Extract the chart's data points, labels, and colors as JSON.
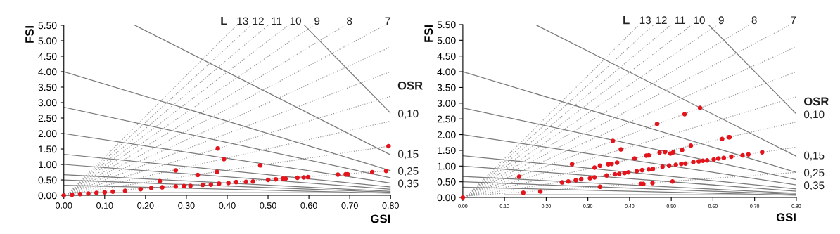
{
  "chart_data": [
    {
      "type": "scatter",
      "xlabel": "GSI",
      "ylabel": "FSI",
      "xlim": [
        0,
        0.8
      ],
      "ylim": [
        0,
        5.5
      ],
      "grid": false,
      "legend": false,
      "xticks": [
        {
          "value": 0,
          "label": "0.00"
        },
        {
          "value": 0.1,
          "label": "0.10"
        },
        {
          "value": 0.2,
          "label": "0.20"
        },
        {
          "value": 0.3,
          "label": "0.30"
        },
        {
          "value": 0.4,
          "label": "0.40"
        },
        {
          "value": 0.5,
          "label": "0.50"
        },
        {
          "value": 0.6,
          "label": "0.60"
        },
        {
          "value": 0.7,
          "label": "0.70"
        },
        {
          "value": 0.8,
          "label": "0.80"
        }
      ],
      "yticks": [
        {
          "value": 0,
          "label": "0.00"
        },
        {
          "value": 0.5,
          "label": "0.50"
        },
        {
          "value": 1,
          "label": "1.00"
        },
        {
          "value": 1.5,
          "label": "1.50"
        },
        {
          "value": 2,
          "label": "2.00"
        },
        {
          "value": 2.5,
          "label": "2.50"
        },
        {
          "value": 3,
          "label": "3.00"
        },
        {
          "value": 3.5,
          "label": "3.50"
        },
        {
          "value": 4,
          "label": "4.00"
        },
        {
          "value": 4.5,
          "label": "4.50"
        },
        {
          "value": 5,
          "label": "5.00"
        },
        {
          "value": 5.5,
          "label": "5.50"
        }
      ],
      "annotations": [
        "L",
        "13",
        "12",
        "11",
        "10",
        "9",
        "8",
        "7",
        "OSR",
        "0,10",
        "0,15",
        "0,25",
        "0,35"
      ],
      "series": [
        {
          "type": "line",
          "line_style": "dotted",
          "color": "#9a9a9a",
          "x": [
            0.01,
            0.423
          ],
          "values": [
            0.05,
            5.5
          ]
        },
        {
          "type": "line",
          "line_style": "dotted",
          "color": "#9a9a9a",
          "x": [
            0.01,
            0.458
          ],
          "values": [
            0.05,
            5.5
          ]
        },
        {
          "type": "line",
          "line_style": "dotted",
          "color": "#9a9a9a",
          "x": [
            0.01,
            0.5
          ],
          "values": [
            0.05,
            5.5
          ]
        },
        {
          "type": "line",
          "line_style": "dotted",
          "color": "#9a9a9a",
          "x": [
            0.01,
            0.55
          ],
          "values": [
            0.05,
            5.5
          ]
        },
        {
          "type": "line",
          "line_style": "dotted",
          "color": "#9a9a9a",
          "x": [
            0.01,
            0.611
          ],
          "values": [
            0.05,
            5.5
          ]
        },
        {
          "type": "line",
          "line_style": "dotted",
          "color": "#9a9a9a",
          "x": [
            0.01,
            0.688
          ],
          "values": [
            0.05,
            5.5
          ]
        },
        {
          "type": "line",
          "line_style": "dotted",
          "color": "#9a9a9a",
          "x": [
            0.01,
            0.786
          ],
          "values": [
            0.05,
            5.5
          ]
        },
        {
          "type": "line",
          "line_style": "dotted",
          "color": "#9a9a9a",
          "x": [
            0.01,
            0.8
          ],
          "values": [
            0.05,
            4.8
          ]
        },
        {
          "type": "line",
          "line_style": "dotted",
          "color": "#9a9a9a",
          "x": [
            0.01,
            0.8
          ],
          "values": [
            0.05,
            4.0
          ]
        },
        {
          "type": "line",
          "line_style": "dotted",
          "color": "#9a9a9a",
          "x": [
            0.01,
            0.8
          ],
          "values": [
            0.05,
            3.2
          ]
        },
        {
          "type": "line",
          "line_style": "dotted",
          "color": "#9a9a9a",
          "x": [
            0.01,
            0.8
          ],
          "values": [
            0.05,
            2.4
          ]
        },
        {
          "type": "line",
          "line_style": "dotted",
          "color": "#9a9a9a",
          "x": [
            0.01,
            0.8
          ],
          "values": [
            0.05,
            1.6
          ]
        },
        {
          "type": "line",
          "line_style": "dotted",
          "color": "#9a9a9a",
          "x": [
            0.01,
            0.8
          ],
          "values": [
            0.05,
            0.8
          ]
        },
        {
          "type": "line",
          "line_style": "solid",
          "color": "#7a7a7a",
          "x": [
            0.589,
            0.8
          ],
          "values": [
            5.5,
            2.66
          ]
        },
        {
          "type": "line",
          "line_style": "solid",
          "color": "#7a7a7a",
          "x": [
            0.174,
            0.8
          ],
          "values": [
            5.5,
            1.31
          ]
        },
        {
          "type": "line",
          "line_style": "solid",
          "color": "#7a7a7a",
          "x": [
            0,
            0.8
          ],
          "values": [
            4.0,
            0.8
          ]
        },
        {
          "type": "line",
          "line_style": "solid",
          "color": "#7a7a7a",
          "x": [
            0,
            0.8
          ],
          "values": [
            2.85,
            0.57
          ]
        },
        {
          "type": "line",
          "line_style": "solid",
          "color": "#7a7a7a",
          "x": [
            0,
            0.8
          ],
          "values": [
            2.0,
            0.4
          ]
        },
        {
          "type": "line",
          "line_style": "solid",
          "color": "#7a7a7a",
          "x": [
            0,
            0.8
          ],
          "values": [
            1.33,
            0.27
          ]
        },
        {
          "type": "line",
          "line_style": "solid",
          "color": "#7a7a7a",
          "x": [
            0,
            0.8
          ],
          "values": [
            1.0,
            0.2
          ]
        },
        {
          "type": "line",
          "line_style": "solid",
          "color": "#7a7a7a",
          "x": [
            0,
            0.8
          ],
          "values": [
            0.67,
            0.13
          ]
        },
        {
          "type": "line",
          "line_style": "solid",
          "color": "#7a7a7a",
          "x": [
            0,
            0.8
          ],
          "values": [
            0.5,
            0.1
          ]
        },
        {
          "type": "line",
          "line_style": "solid",
          "color": "#7a7a7a",
          "x": [
            0,
            0.8
          ],
          "values": [
            0.33,
            0.07
          ]
        },
        {
          "type": "line",
          "line_style": "solid",
          "color": "#9a9a9a",
          "x": [
            0.02,
            0.7
          ],
          "values": [
            0.09,
            0.09
          ]
        },
        {
          "type": "scatter",
          "marker": "circle",
          "color": "#e3141c",
          "x": [
            0,
            0.02,
            0.04,
            0.06,
            0.08,
            0.1,
            0.12,
            0.15,
            0.188,
            0.214,
            0.241,
            0.274,
            0.294,
            0.31,
            0.34,
            0.36,
            0.38,
            0.403,
            0.422,
            0.446,
            0.463,
            0.5,
            0.519,
            0.536,
            0.543,
            0.572,
            0.587,
            0.598,
            0.377,
            0.392,
            0.274,
            0.328,
            0.375,
            0.481,
            0.235,
            0.795,
            0.789,
            0.755,
            0.671,
            0.69,
            0.695
          ],
          "values": [
            0,
            0.02,
            0.04,
            0.06,
            0.08,
            0.1,
            0.12,
            0.15,
            0.2,
            0.24,
            0.26,
            0.29,
            0.3,
            0.31,
            0.34,
            0.35,
            0.38,
            0.4,
            0.43,
            0.44,
            0.45,
            0.5,
            0.52,
            0.54,
            0.54,
            0.57,
            0.58,
            0.59,
            1.52,
            1.17,
            0.81,
            0.66,
            0.76,
            0.97,
            0.46,
            1.59,
            0.79,
            0.75,
            0.67,
            0.68,
            0.68
          ]
        }
      ]
    },
    {
      "type": "scatter",
      "xlabel": "GSI",
      "ylabel": "FSI",
      "xlim": [
        0,
        0.8
      ],
      "ylim": [
        0,
        5.5
      ],
      "grid": false,
      "legend": false,
      "xticks": [
        {
          "value": 0,
          "label": "0.00"
        },
        {
          "value": 0.1,
          "label": "0.10"
        },
        {
          "value": 0.2,
          "label": "0.20"
        },
        {
          "value": 0.3,
          "label": "0.30"
        },
        {
          "value": 0.4,
          "label": "0.40"
        },
        {
          "value": 0.5,
          "label": "0.50"
        },
        {
          "value": 0.6,
          "label": "0.60"
        },
        {
          "value": 0.7,
          "label": "0.70"
        },
        {
          "value": 0.8,
          "label": "0.80"
        }
      ],
      "yticks": [
        {
          "value": 0,
          "label": "0.00"
        },
        {
          "value": 0.5,
          "label": "0.50"
        },
        {
          "value": 1,
          "label": "1.00"
        },
        {
          "value": 1.5,
          "label": "1.50"
        },
        {
          "value": 2,
          "label": "2.00"
        },
        {
          "value": 2.5,
          "label": "2.50"
        },
        {
          "value": 3,
          "label": "3.00"
        },
        {
          "value": 3.5,
          "label": "3.50"
        },
        {
          "value": 4,
          "label": "4.00"
        },
        {
          "value": 4.5,
          "label": "4.50"
        },
        {
          "value": 5,
          "label": "5.00"
        },
        {
          "value": 5.5,
          "label": "5.50"
        }
      ],
      "annotations": [
        "L",
        "13",
        "12",
        "11",
        "10",
        "9",
        "8",
        "7",
        "OSR",
        "0,10",
        "0,15",
        "0,25",
        "0,35"
      ],
      "series": [
        {
          "type": "line",
          "line_style": "dotted",
          "color": "#9a9a9a",
          "x": [
            0.01,
            0.423
          ],
          "values": [
            0.05,
            5.5
          ]
        },
        {
          "type": "line",
          "line_style": "dotted",
          "color": "#9a9a9a",
          "x": [
            0.01,
            0.458
          ],
          "values": [
            0.05,
            5.5
          ]
        },
        {
          "type": "line",
          "line_style": "dotted",
          "color": "#9a9a9a",
          "x": [
            0.01,
            0.5
          ],
          "values": [
            0.05,
            5.5
          ]
        },
        {
          "type": "line",
          "line_style": "dotted",
          "color": "#9a9a9a",
          "x": [
            0.01,
            0.55
          ],
          "values": [
            0.05,
            5.5
          ]
        },
        {
          "type": "line",
          "line_style": "dotted",
          "color": "#9a9a9a",
          "x": [
            0.01,
            0.611
          ],
          "values": [
            0.05,
            5.5
          ]
        },
        {
          "type": "line",
          "line_style": "dotted",
          "color": "#9a9a9a",
          "x": [
            0.01,
            0.688
          ],
          "values": [
            0.05,
            5.5
          ]
        },
        {
          "type": "line",
          "line_style": "dotted",
          "color": "#9a9a9a",
          "x": [
            0.01,
            0.786
          ],
          "values": [
            0.05,
            5.5
          ]
        },
        {
          "type": "line",
          "line_style": "dotted",
          "color": "#9a9a9a",
          "x": [
            0.01,
            0.8
          ],
          "values": [
            0.05,
            4.8
          ]
        },
        {
          "type": "line",
          "line_style": "dotted",
          "color": "#9a9a9a",
          "x": [
            0.01,
            0.8
          ],
          "values": [
            0.05,
            4.0
          ]
        },
        {
          "type": "line",
          "line_style": "dotted",
          "color": "#9a9a9a",
          "x": [
            0.01,
            0.8
          ],
          "values": [
            0.05,
            3.2
          ]
        },
        {
          "type": "line",
          "line_style": "dotted",
          "color": "#9a9a9a",
          "x": [
            0.01,
            0.8
          ],
          "values": [
            0.05,
            2.4
          ]
        },
        {
          "type": "line",
          "line_style": "dotted",
          "color": "#9a9a9a",
          "x": [
            0.01,
            0.8
          ],
          "values": [
            0.05,
            1.6
          ]
        },
        {
          "type": "line",
          "line_style": "dotted",
          "color": "#9a9a9a",
          "x": [
            0.01,
            0.8
          ],
          "values": [
            0.05,
            0.8
          ]
        },
        {
          "type": "line",
          "line_style": "solid",
          "color": "#7a7a7a",
          "x": [
            0.589,
            0.8
          ],
          "values": [
            5.5,
            2.66
          ]
        },
        {
          "type": "line",
          "line_style": "solid",
          "color": "#7a7a7a",
          "x": [
            0.174,
            0.8
          ],
          "values": [
            5.5,
            1.31
          ]
        },
        {
          "type": "line",
          "line_style": "solid",
          "color": "#7a7a7a",
          "x": [
            0,
            0.8
          ],
          "values": [
            4.0,
            0.8
          ]
        },
        {
          "type": "line",
          "line_style": "solid",
          "color": "#7a7a7a",
          "x": [
            0,
            0.8
          ],
          "values": [
            2.85,
            0.57
          ]
        },
        {
          "type": "line",
          "line_style": "solid",
          "color": "#7a7a7a",
          "x": [
            0,
            0.8
          ],
          "values": [
            2.0,
            0.4
          ]
        },
        {
          "type": "line",
          "line_style": "solid",
          "color": "#7a7a7a",
          "x": [
            0,
            0.8
          ],
          "values": [
            1.33,
            0.27
          ]
        },
        {
          "type": "line",
          "line_style": "solid",
          "color": "#7a7a7a",
          "x": [
            0,
            0.8
          ],
          "values": [
            1.0,
            0.2
          ]
        },
        {
          "type": "line",
          "line_style": "solid",
          "color": "#7a7a7a",
          "x": [
            0,
            0.8
          ],
          "values": [
            0.67,
            0.13
          ]
        },
        {
          "type": "line",
          "line_style": "solid",
          "color": "#7a7a7a",
          "x": [
            0,
            0.8
          ],
          "values": [
            0.5,
            0.1
          ]
        },
        {
          "type": "line",
          "line_style": "solid",
          "color": "#7a7a7a",
          "x": [
            0,
            0.8
          ],
          "values": [
            0.33,
            0.07
          ]
        },
        {
          "type": "line",
          "line_style": "solid",
          "color": "#9a9a9a",
          "x": [
            0.1,
            0.7
          ],
          "values": [
            0.09,
            0.09
          ]
        },
        {
          "type": "scatter",
          "marker": "circle",
          "color": "#e3141c",
          "x": [
            0,
            0.135,
            0.145,
            0.186,
            0.569,
            0.532,
            0.466,
            0.36,
            0.379,
            0.262,
            0.329,
            0.412,
            0.622,
            0.638,
            0.64,
            0.547,
            0.526,
            0.505,
            0.498,
            0.485,
            0.472,
            0.446,
            0.44,
            0.37,
            0.357,
            0.349,
            0.329,
            0.316,
            0.433,
            0.427,
            0.455,
            0.503,
            0.718,
            0.685,
            0.671,
            0.644,
            0.626,
            0.613,
            0.602,
            0.586,
            0.576,
            0.566,
            0.553,
            0.534,
            0.524,
            0.511,
            0.495,
            0.479,
            0.456,
            0.446,
            0.43,
            0.417,
            0.397,
            0.388,
            0.375,
            0.365,
            0.345,
            0.316,
            0.305,
            0.284,
            0.271,
            0.253,
            0.238
          ],
          "values": [
            0,
            0.66,
            0.15,
            0.19,
            2.85,
            2.65,
            2.34,
            1.8,
            1.53,
            1.06,
            0.34,
            1.24,
            1.86,
            1.92,
            1.92,
            1.65,
            1.51,
            1.44,
            1.4,
            1.45,
            1.43,
            1.34,
            1.33,
            1.11,
            1.07,
            1.06,
            1.01,
            0.95,
            0.43,
            0.43,
            0.46,
            0.51,
            1.44,
            1.37,
            1.34,
            1.3,
            1.26,
            1.24,
            1.21,
            1.18,
            1.17,
            1.15,
            1.13,
            1.08,
            1.07,
            1.04,
            1.01,
            0.98,
            0.91,
            0.89,
            0.87,
            0.84,
            0.8,
            0.78,
            0.75,
            0.74,
            0.7,
            0.64,
            0.61,
            0.58,
            0.55,
            0.51,
            0.48
          ]
        }
      ]
    }
  ]
}
